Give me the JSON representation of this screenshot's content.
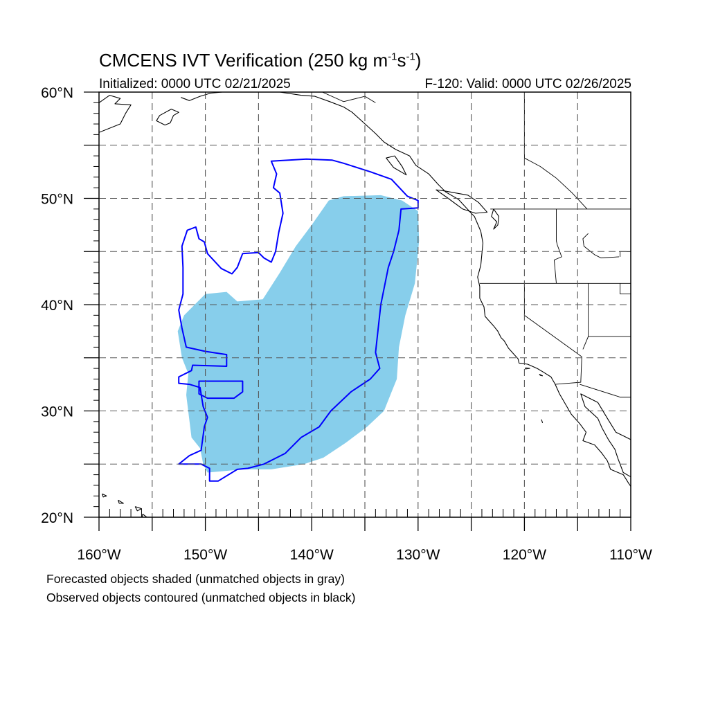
{
  "title_main": "CMCENS IVT Verification (250 kg m",
  "title_sup1": "-1",
  "title_mid": "s",
  "title_sup2": "-1",
  "title_end": ")",
  "init_text": "Initialized: 0000 UTC 02/21/2025",
  "valid_text": "F-120: Valid: 0000 UTC 02/26/2025",
  "footnote_forecast": "Forecasted objects shaded (unmatched objects in gray)",
  "footnote_observed": "Observed objects contoured (unmatched objects in black)",
  "axes": {
    "lon_min": -160,
    "lon_max": -110,
    "lat_min": 20,
    "lat_max": 60,
    "x_ticks": [
      -160,
      -150,
      -140,
      -130,
      -120,
      -110
    ],
    "x_tick_labels": [
      "160°W",
      "150°W",
      "140°W",
      "130°W",
      "120°W",
      "110°W"
    ],
    "y_ticks": [
      20,
      30,
      40,
      50,
      60
    ],
    "y_tick_labels": [
      "20°N",
      "30°N",
      "40°N",
      "50°N",
      "60°N"
    ],
    "grid_step_lon": 5,
    "grid_step_lat": 5
  },
  "colors": {
    "forecast_fill": "#87ceeb",
    "observed_contour": "#0000ff",
    "coast": "#000000",
    "grid": "#555555"
  },
  "forecast_object": [
    [
      -151,
      40
    ],
    [
      -150,
      41
    ],
    [
      -148,
      41.2
    ],
    [
      -147,
      40.3
    ],
    [
      -144.6,
      40.5
    ],
    [
      -143,
      43
    ],
    [
      -141.5,
      45.5
    ],
    [
      -140,
      47.5
    ],
    [
      -138.4,
      49.8
    ],
    [
      -137,
      50.2
    ],
    [
      -133.5,
      50.3
    ],
    [
      -131.5,
      49.8
    ],
    [
      -130,
      48.8
    ],
    [
      -129.9,
      46
    ],
    [
      -130.3,
      42
    ],
    [
      -131.2,
      39
    ],
    [
      -131.8,
      36
    ],
    [
      -132,
      33
    ],
    [
      -132.4,
      32
    ],
    [
      -133.2,
      30
    ],
    [
      -134.8,
      28.5
    ],
    [
      -136.8,
      27
    ],
    [
      -138.9,
      25.6
    ],
    [
      -140.7,
      25
    ],
    [
      -143.8,
      24.5
    ],
    [
      -146.4,
      24.5
    ],
    [
      -149.8,
      24.2
    ],
    [
      -150.2,
      25
    ],
    [
      -150.5,
      26.5
    ],
    [
      -151.3,
      27.5
    ],
    [
      -151.8,
      31.5
    ],
    [
      -151.6,
      33.5
    ],
    [
      -152.2,
      35
    ],
    [
      -152.6,
      37.5
    ],
    [
      -152,
      39
    ]
  ],
  "observed_object": [
    [
      -143.8,
      53.5
    ],
    [
      -140.5,
      53.7
    ],
    [
      -138.1,
      53.6
    ],
    [
      -137,
      53.3
    ],
    [
      -134.5,
      52.5
    ],
    [
      -132.5,
      51.8
    ],
    [
      -131,
      50.2
    ],
    [
      -130,
      49.8
    ],
    [
      -130,
      49.1
    ],
    [
      -131.6,
      49
    ],
    [
      -131.8,
      47
    ],
    [
      -132.3,
      45
    ],
    [
      -132.8,
      43.5
    ],
    [
      -133.5,
      40
    ],
    [
      -134,
      35.5
    ],
    [
      -133.6,
      34
    ],
    [
      -134.5,
      33
    ],
    [
      -136.3,
      31.8
    ],
    [
      -138.2,
      30
    ],
    [
      -139.3,
      28.5
    ],
    [
      -141,
      27.5
    ],
    [
      -142.5,
      26
    ],
    [
      -144.5,
      25
    ],
    [
      -146,
      24.6
    ],
    [
      -147,
      24.5
    ],
    [
      -148.8,
      23.4
    ],
    [
      -149.6,
      23.4
    ],
    [
      -149.6,
      24.6
    ],
    [
      -150.4,
      25
    ],
    [
      -151.4,
      25
    ],
    [
      -152.5,
      25
    ],
    [
      -151.5,
      25.8
    ],
    [
      -150.4,
      26.3
    ],
    [
      -150.1,
      28.5
    ],
    [
      -149.8,
      29.4
    ],
    [
      -150.2,
      30.4
    ],
    [
      -150.5,
      32.2
    ],
    [
      -151.5,
      32.5
    ],
    [
      -152.5,
      32.6
    ],
    [
      -152.5,
      33.2
    ],
    [
      -151.3,
      33.8
    ],
    [
      -151.2,
      34.3
    ],
    [
      -148,
      34.2
    ],
    [
      -148,
      35.3
    ],
    [
      -150,
      35.6
    ],
    [
      -151.8,
      36
    ],
    [
      -152.2,
      37.8
    ],
    [
      -152.5,
      39.5
    ],
    [
      -152.1,
      41
    ],
    [
      -152.1,
      43.5
    ],
    [
      -152.2,
      45.5
    ],
    [
      -151.7,
      47
    ],
    [
      -150.9,
      47.3
    ],
    [
      -150.6,
      46.2
    ],
    [
      -150.1,
      45.9
    ],
    [
      -149.8,
      44.8
    ],
    [
      -148.5,
      43.4
    ],
    [
      -147.5,
      42.9
    ],
    [
      -147,
      43.5
    ],
    [
      -146.5,
      44.8
    ],
    [
      -145,
      44.9
    ],
    [
      -144.5,
      44.4
    ],
    [
      -143.8,
      44
    ],
    [
      -143.4,
      45
    ],
    [
      -143.1,
      46.8
    ],
    [
      -142.7,
      48.6
    ],
    [
      -143,
      50.5
    ],
    [
      -143.6,
      51
    ],
    [
      -143.3,
      52.3
    ]
  ],
  "observed_inner_contour": [
    [
      -150.6,
      32.8
    ],
    [
      -146.5,
      32.8
    ],
    [
      -146.5,
      31.8
    ],
    [
      -147.3,
      31.2
    ],
    [
      -149.8,
      31.2
    ],
    [
      -150.6,
      31.6
    ]
  ],
  "coastlines": [
    [
      [
        -160,
        56.2
      ],
      [
        -158,
        57
      ],
      [
        -157.5,
        58
      ],
      [
        -157,
        58.8
      ],
      [
        -158.5,
        58.9
      ],
      [
        -158,
        59.4
      ],
      [
        -159,
        59.7
      ],
      [
        -160,
        59
      ]
    ],
    [
      [
        -153.3,
        57.1
      ],
      [
        -153,
        57.8
      ],
      [
        -152.5,
        58.1
      ],
      [
        -153.2,
        58.4
      ],
      [
        -154.3,
        57.8
      ],
      [
        -154.6,
        57.3
      ],
      [
        -153.8,
        56.9
      ],
      [
        -153.3,
        57.1
      ]
    ],
    [
      [
        -152.3,
        59.5
      ],
      [
        -151.5,
        59.2
      ],
      [
        -150.5,
        59.6
      ],
      [
        -149.5,
        59.9
      ],
      [
        -148.4,
        60
      ]
    ],
    [
      [
        -146.2,
        60
      ],
      [
        -144.6,
        60.1
      ],
      [
        -143,
        60
      ],
      [
        -141,
        59.7
      ],
      [
        -139.7,
        59.6
      ],
      [
        -138.3,
        59.1
      ],
      [
        -137,
        58.6
      ],
      [
        -136.2,
        58.1
      ],
      [
        -135.2,
        57.2
      ],
      [
        -134,
        56.1
      ],
      [
        -133.2,
        55.3
      ],
      [
        -132.1,
        54.6
      ],
      [
        -130.8,
        54
      ],
      [
        -130.2,
        53.1
      ],
      [
        -129,
        52.3
      ],
      [
        -128.1,
        51.3
      ],
      [
        -127.4,
        50.6
      ],
      [
        -126.2,
        49.9
      ],
      [
        -125,
        48.6
      ],
      [
        -124.7,
        48.3
      ],
      [
        -124.1,
        46.9
      ],
      [
        -123.9,
        45.8
      ],
      [
        -124,
        44.8
      ],
      [
        -124.1,
        43.7
      ],
      [
        -124.4,
        42.6
      ],
      [
        -124.2,
        41.7
      ],
      [
        -124.2,
        40.6
      ],
      [
        -123.8,
        39.8
      ],
      [
        -123.7,
        38.9
      ],
      [
        -122.9,
        38
      ],
      [
        -122.5,
        37.5
      ],
      [
        -122.2,
        36.9
      ],
      [
        -121.9,
        36.6
      ],
      [
        -121.5,
        35.9
      ],
      [
        -120.6,
        34.9
      ],
      [
        -120.5,
        34.5
      ],
      [
        -119.7,
        34.4
      ],
      [
        -118.8,
        34
      ],
      [
        -118.3,
        33.7
      ],
      [
        -117.5,
        33.2
      ],
      [
        -117.1,
        32.5
      ],
      [
        -116.7,
        31.6
      ],
      [
        -116,
        30.4
      ],
      [
        -115.6,
        29.7
      ],
      [
        -114.8,
        28.8
      ],
      [
        -114.2,
        28
      ],
      [
        -114.5,
        27.2
      ],
      [
        -113.4,
        26.8
      ],
      [
        -112.7,
        26
      ],
      [
        -112.2,
        25.3
      ],
      [
        -111.9,
        24.5
      ],
      [
        -110.7,
        24
      ],
      [
        -110.2,
        23.2
      ],
      [
        -110,
        22.9
      ]
    ],
    [
      [
        -110,
        23.8
      ],
      [
        -110.7,
        24.2
      ],
      [
        -111.2,
        25.5
      ],
      [
        -111.5,
        26.4
      ],
      [
        -112.1,
        27.3
      ],
      [
        -112.7,
        28.4
      ],
      [
        -113.1,
        29.3
      ],
      [
        -114.3,
        30.4
      ],
      [
        -114.7,
        31.6
      ],
      [
        -114.1,
        31.3
      ],
      [
        -113.1,
        30.8
      ],
      [
        -112.2,
        29.3
      ],
      [
        -111.4,
        28
      ],
      [
        -110.6,
        27.6
      ],
      [
        -110,
        27.3
      ]
    ],
    [
      [
        -125.3,
        50.3
      ],
      [
        -124.3,
        49.6
      ],
      [
        -123.5,
        48.7
      ],
      [
        -124.6,
        48.6
      ],
      [
        -125.8,
        49
      ],
      [
        -127.3,
        50.1
      ],
      [
        -128.3,
        50.8
      ],
      [
        -127.5,
        50.7
      ],
      [
        -125.3,
        50.3
      ]
    ],
    [
      [
        -132.2,
        54
      ],
      [
        -131.5,
        53
      ],
      [
        -131.1,
        52.2
      ],
      [
        -132.3,
        52.9
      ],
      [
        -133,
        53.8
      ],
      [
        -132.2,
        54
      ]
    ],
    [
      [
        -122.9,
        49
      ],
      [
        -122.4,
        48.3
      ],
      [
        -122.5,
        47.5
      ],
      [
        -122.9,
        47.1
      ],
      [
        -122.6,
        47.8
      ],
      [
        -123.1,
        48.3
      ],
      [
        -122.9,
        49
      ]
    ],
    [
      [
        -155.9,
        20.3
      ],
      [
        -155.1,
        19.7
      ],
      [
        -154.9,
        19.5
      ],
      [
        -155.7,
        19
      ],
      [
        -156,
        19.6
      ],
      [
        -155.9,
        20.3
      ]
    ],
    [
      [
        -156.6,
        21
      ],
      [
        -156,
        20.8
      ],
      [
        -156.4,
        20.6
      ],
      [
        -156.6,
        21
      ]
    ],
    [
      [
        -158.2,
        21.6
      ],
      [
        -157.7,
        21.3
      ],
      [
        -158.1,
        21.3
      ],
      [
        -158.2,
        21.6
      ]
    ],
    [
      [
        -159.7,
        22.2
      ],
      [
        -159.3,
        22
      ],
      [
        -159.6,
        21.9
      ],
      [
        -159.7,
        22.2
      ]
    ],
    [
      [
        -118.6,
        33.45
      ],
      [
        -118.3,
        33.3
      ],
      [
        -118.5,
        33.35
      ],
      [
        -118.6,
        33.45
      ]
    ],
    [
      [
        -119.9,
        34.05
      ],
      [
        -119.5,
        34
      ],
      [
        -119.9,
        33.95
      ],
      [
        -119.9,
        34.05
      ]
    ],
    [
      [
        -118.4,
        29.2
      ],
      [
        -118.3,
        28.9
      ],
      [
        -118.4,
        29.2
      ]
    ]
  ],
  "boundaries": [
    [
      [
        -110,
        49
      ],
      [
        -123.2,
        49
      ]
    ],
    [
      [
        -124.2,
        42
      ],
      [
        -110,
        42
      ]
    ],
    [
      [
        -120,
        42
      ],
      [
        -120,
        39
      ],
      [
        -114.6,
        35.1
      ]
    ],
    [
      [
        -114.6,
        35.1
      ],
      [
        -114.7,
        32.7
      ],
      [
        -117.1,
        32.5
      ]
    ],
    [
      [
        -114.8,
        32.5
      ],
      [
        -111,
        31.3
      ],
      [
        -110,
        31.3
      ]
    ],
    [
      [
        -117,
        49
      ],
      [
        -117,
        46
      ],
      [
        -116.9,
        45.6
      ],
      [
        -116.5,
        44.5
      ],
      [
        -117.2,
        44.2
      ],
      [
        -117,
        42
      ]
    ],
    [
      [
        -111.1,
        45
      ],
      [
        -110,
        45
      ]
    ],
    [
      [
        -111,
        45
      ],
      [
        -111,
        44.5
      ]
    ],
    [
      [
        -114,
        42
      ],
      [
        -114,
        37
      ],
      [
        -114.5,
        35.8
      ]
    ],
    [
      [
        -111,
        42
      ],
      [
        -111,
        41
      ],
      [
        -110,
        41
      ]
    ],
    [
      [
        -114,
        37
      ],
      [
        -110,
        37
      ]
    ],
    [
      [
        -141,
        60
      ],
      [
        -141,
        60
      ]
    ],
    [
      [
        -120,
        60
      ],
      [
        -120,
        53.8
      ],
      [
        -118.5,
        53
      ]
    ],
    [
      [
        -114.1,
        49
      ],
      [
        -115.5,
        50.5
      ],
      [
        -117,
        51.9
      ],
      [
        -118.5,
        53
      ]
    ],
    [
      [
        -114,
        46.7
      ],
      [
        -114.5,
        46.2
      ],
      [
        -114.4,
        45.5
      ],
      [
        -113.4,
        44.7
      ],
      [
        -112.8,
        44.4
      ],
      [
        -111.1,
        44.5
      ]
    ],
    [
      [
        -134,
        59
      ],
      [
        -135,
        59.6
      ],
      [
        -137,
        59.1
      ],
      [
        -139,
        60
      ],
      [
        -141,
        60
      ]
    ]
  ]
}
